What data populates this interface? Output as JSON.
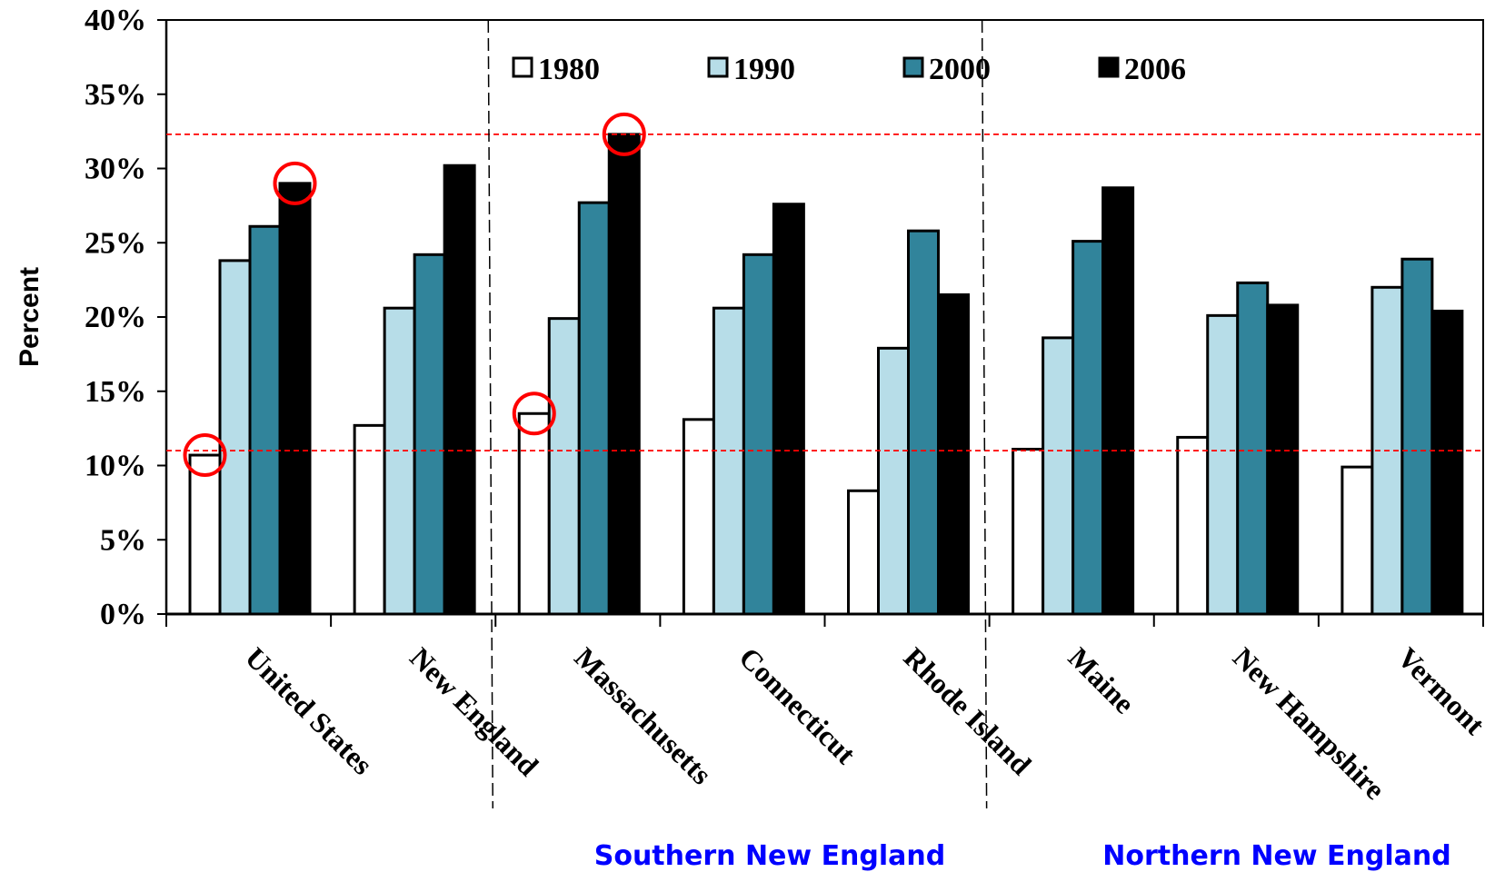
{
  "chart_data": {
    "type": "bar",
    "ylabel": "Percent",
    "ylim": [
      0,
      40
    ],
    "ytick_step": 5,
    "ytick_suffix": "%",
    "grid": false,
    "legend_position": "top",
    "categories": [
      "United States",
      "New England",
      "Massachusetts",
      "Connecticut",
      "Rhode Island",
      "Maine",
      "New Hampshire",
      "Vermont"
    ],
    "series": [
      {
        "name": "1980",
        "color": "#ffffff",
        "values": [
          10.7,
          12.7,
          13.5,
          13.1,
          8.3,
          11.1,
          11.9,
          9.9
        ]
      },
      {
        "name": "1990",
        "color": "#b7dde8",
        "values": [
          23.8,
          20.6,
          19.9,
          20.6,
          17.9,
          18.6,
          20.1,
          22.0
        ]
      },
      {
        "name": "2000",
        "color": "#31849b",
        "values": [
          26.1,
          24.2,
          27.7,
          24.2,
          25.8,
          25.1,
          22.3,
          23.9
        ]
      },
      {
        "name": "2006",
        "color": "#000000",
        "values": [
          29.0,
          30.2,
          32.3,
          27.6,
          21.5,
          28.7,
          20.8,
          20.4
        ]
      }
    ],
    "reference_lines": [
      {
        "y": 11.0,
        "color": "#ff0000",
        "style": "dashed"
      },
      {
        "y": 32.3,
        "color": "#ff0000",
        "style": "dashed"
      }
    ],
    "highlights": [
      {
        "category": "United States",
        "series": "1980"
      },
      {
        "category": "United States",
        "series": "2006"
      },
      {
        "category": "Massachusetts",
        "series": "1980"
      },
      {
        "category": "Massachusetts",
        "series": "2006"
      }
    ],
    "highlight_color": "#ff0000",
    "region_dividers": [
      {
        "between": [
          "New England",
          "Massachusetts"
        ]
      },
      {
        "between": [
          "Rhode Island",
          "Maine"
        ]
      }
    ],
    "region_labels": [
      {
        "text": "Southern New England",
        "color": "#0000ff"
      },
      {
        "text": "Northern New England",
        "color": "#0000ff"
      }
    ]
  }
}
